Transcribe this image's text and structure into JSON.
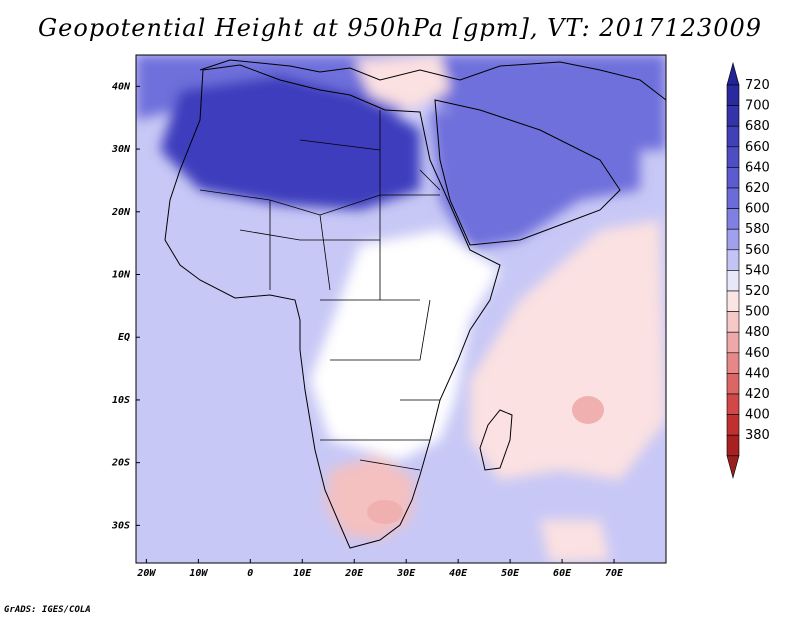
{
  "title": "Geopotential Height at 950hPa [gpm], VT: 2017123009",
  "credit": "GrADS: IGES/COLA",
  "map": {
    "variable": "Geopotential Height",
    "level": "950hPa",
    "units": "gpm",
    "valid_time": "2017123009",
    "lat_range": [
      -36,
      45
    ],
    "lon_range": [
      -22,
      80
    ],
    "lat_ticks": [
      {
        "value": 40,
        "label": "40N"
      },
      {
        "value": 30,
        "label": "30N"
      },
      {
        "value": 20,
        "label": "20N"
      },
      {
        "value": 10,
        "label": "10N"
      },
      {
        "value": 0,
        "label": "EQ"
      },
      {
        "value": -10,
        "label": "10S"
      },
      {
        "value": -20,
        "label": "20S"
      },
      {
        "value": -30,
        "label": "30S"
      }
    ],
    "lon_ticks": [
      {
        "value": -20,
        "label": "20W"
      },
      {
        "value": -10,
        "label": "10W"
      },
      {
        "value": 0,
        "label": "0"
      },
      {
        "value": 10,
        "label": "10E"
      },
      {
        "value": 20,
        "label": "20E"
      },
      {
        "value": 30,
        "label": "30E"
      },
      {
        "value": 40,
        "label": "40E"
      },
      {
        "value": 50,
        "label": "50E"
      },
      {
        "value": 60,
        "label": "60E"
      },
      {
        "value": 70,
        "label": "70E"
      }
    ]
  },
  "colorbar": {
    "levels": [
      {
        "label": "720",
        "color": "#2a2aa0"
      },
      {
        "label": "700",
        "color": "#3333aa"
      },
      {
        "label": "680",
        "color": "#4040b8"
      },
      {
        "label": "660",
        "color": "#4d4dc4"
      },
      {
        "label": "640",
        "color": "#5c5cd0"
      },
      {
        "label": "620",
        "color": "#6b6bda"
      },
      {
        "label": "600",
        "color": "#8080e2"
      },
      {
        "label": "580",
        "color": "#a0a0ec"
      },
      {
        "label": "560",
        "color": "#c4c4f4"
      },
      {
        "label": "540",
        "color": "#e8e8fb"
      },
      {
        "label": "520",
        "color": "#fbe4e4"
      },
      {
        "label": "500",
        "color": "#f6c8c8"
      },
      {
        "label": "480",
        "color": "#eea8a8"
      },
      {
        "label": "460",
        "color": "#e68888"
      },
      {
        "label": "440",
        "color": "#dc6666"
      },
      {
        "label": "420",
        "color": "#d04848"
      },
      {
        "label": "400",
        "color": "#c03030"
      },
      {
        "label": "380",
        "color": "#a82020"
      }
    ],
    "top_arrow_color": "#222299",
    "bottom_arrow_color": "#992020"
  },
  "fields": {
    "ocean_color": "#b8b8f0",
    "background_color": "#c8c8f6",
    "sahara_high_color": "#3d3dbd",
    "arabia_color": "#7070dc",
    "east_africa_low_color": "#ffffff",
    "indian_ocean_low_color": "#fbe1e1",
    "south_africa_low_color": "#f4c0c0",
    "madagascar_low_core_color": "#f0b0b0"
  }
}
